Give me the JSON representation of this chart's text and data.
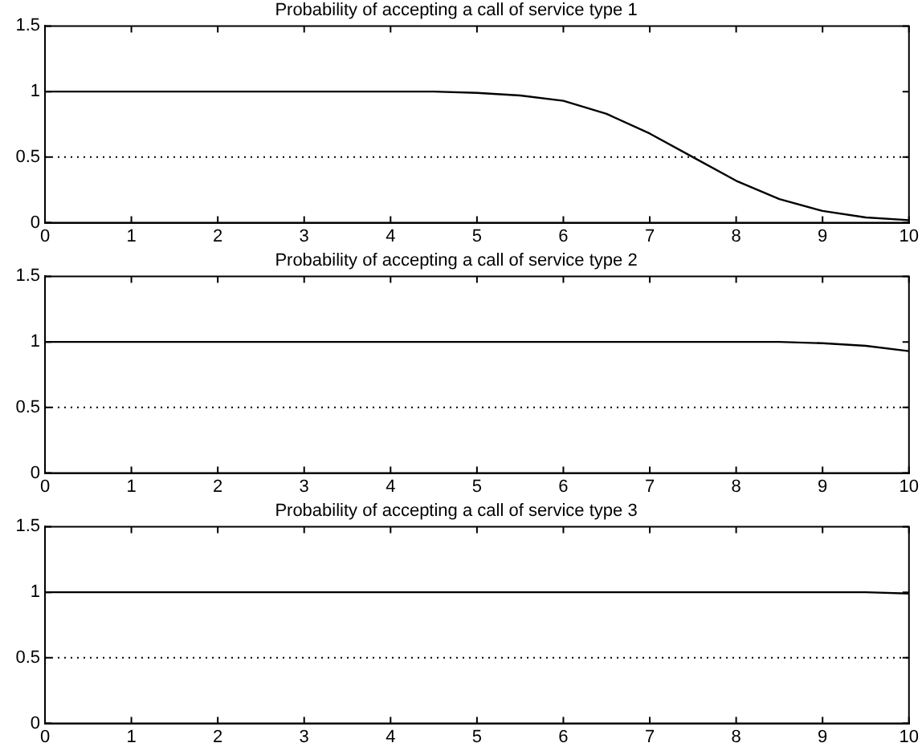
{
  "chart_data": [
    {
      "type": "line",
      "title": "Probability of accepting a call of service type 1",
      "x": [
        0,
        1,
        2,
        3,
        4,
        4.5,
        5,
        5.5,
        6,
        6.5,
        7,
        7.5,
        8,
        8.5,
        9,
        9.5,
        10
      ],
      "values": [
        1,
        1,
        1,
        1,
        1,
        1,
        0.99,
        0.97,
        0.93,
        0.83,
        0.68,
        0.5,
        0.32,
        0.18,
        0.09,
        0.04,
        0.02
      ],
      "color": "#000000",
      "xlim": [
        0,
        10
      ],
      "xticks": [
        0,
        1,
        2,
        3,
        4,
        5,
        6,
        7,
        8,
        9,
        10
      ],
      "ylim": [
        0,
        1.5
      ],
      "yticks": [
        0,
        0.5,
        1,
        1.5
      ],
      "ref_lines": [
        {
          "axis": "y",
          "value": 0.5,
          "line_style": "dotted"
        }
      ],
      "grid": false,
      "legend": false
    },
    {
      "type": "line",
      "title": "Probability of accepting a call of service type 2",
      "x": [
        0,
        2,
        4,
        6,
        8,
        8.5,
        9,
        9.5,
        10
      ],
      "values": [
        1,
        1,
        1,
        1,
        1,
        1,
        0.99,
        0.97,
        0.93
      ],
      "color": "#000000",
      "xlim": [
        0,
        10
      ],
      "xticks": [
        0,
        1,
        2,
        3,
        4,
        5,
        6,
        7,
        8,
        9,
        10
      ],
      "ylim": [
        0,
        1.5
      ],
      "yticks": [
        0,
        0.5,
        1,
        1.5
      ],
      "ref_lines": [
        {
          "axis": "y",
          "value": 0.5,
          "line_style": "dotted"
        }
      ],
      "grid": false,
      "legend": false
    },
    {
      "type": "line",
      "title": "Probability of accepting a call of service type 3",
      "x": [
        0,
        2,
        4,
        6,
        8,
        9,
        9.5,
        10
      ],
      "values": [
        1,
        1,
        1,
        1,
        1,
        1,
        1,
        0.99
      ],
      "color": "#000000",
      "xlim": [
        0,
        10
      ],
      "xticks": [
        0,
        1,
        2,
        3,
        4,
        5,
        6,
        7,
        8,
        9,
        10
      ],
      "ylim": [
        0,
        1.5
      ],
      "yticks": [
        0,
        0.5,
        1,
        1.5
      ],
      "ref_lines": [
        {
          "axis": "y",
          "value": 0.5,
          "line_style": "dotted"
        }
      ],
      "grid": false,
      "legend": false
    }
  ]
}
